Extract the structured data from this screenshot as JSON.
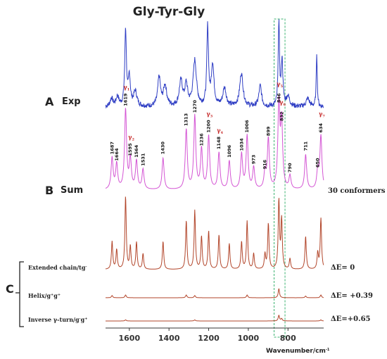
{
  "chart_data": {
    "type": "line",
    "title": "Gly-Tyr-Gly",
    "xlabel": "Wavenumber/cm",
    "xlabel_sup": "-1",
    "xlim": [
      1720,
      620
    ],
    "xticks": [
      1600,
      1400,
      1200,
      1000,
      800
    ],
    "highlight_range": [
      870,
      815
    ],
    "panels": [
      {
        "letter": "A",
        "name": "Exp"
      },
      {
        "letter": "B",
        "name": "Sum",
        "note": "30 conformers"
      },
      {
        "letter": "C"
      }
    ],
    "series": [
      {
        "name": "Exp",
        "color": "#2f3ec4"
      },
      {
        "name": "Sum",
        "color": "#d455d4"
      },
      {
        "name": "Extended chain/tg",
        "color": "#b2452a",
        "delta_E": "ΔE= 0"
      },
      {
        "name": "Helix/g+g+",
        "color": "#b2452a",
        "delta_E": "ΔE= +0.39"
      },
      {
        "name": "Inverse γ-turn/g-g+",
        "color": "#b2452a",
        "delta_E": "ΔE=+0.65"
      }
    ],
    "peak_labels": [
      {
        "x": 1687,
        "label": "1687",
        "level": 0.38
      },
      {
        "x": 1664,
        "label": "1664",
        "level": 0.3
      },
      {
        "x": 1619,
        "label": "1619",
        "level": 0.96
      },
      {
        "x": 1595,
        "label": "1595",
        "level": 0.36
      },
      {
        "x": 1564,
        "label": "1564",
        "level": 0.34
      },
      {
        "x": 1531,
        "label": "1531",
        "level": 0.24
      },
      {
        "x": 1430,
        "label": "1430",
        "level": 0.38
      },
      {
        "x": 1313,
        "label": "1313",
        "level": 0.72
      },
      {
        "x": 1270,
        "label": "1270",
        "level": 0.88
      },
      {
        "x": 1236,
        "label": "1236",
        "level": 0.48
      },
      {
        "x": 1200,
        "label": "1200",
        "level": 0.64
      },
      {
        "x": 1148,
        "label": "1148",
        "level": 0.44
      },
      {
        "x": 1096,
        "label": "1096",
        "level": 0.34
      },
      {
        "x": 1034,
        "label": "1034",
        "level": 0.42
      },
      {
        "x": 1006,
        "label": "1006",
        "level": 0.64
      },
      {
        "x": 973,
        "label": "973",
        "level": 0.26
      },
      {
        "x": 916,
        "label": "916",
        "level": 0.2
      },
      {
        "x": 899,
        "label": "899",
        "level": 0.6
      },
      {
        "x": 846,
        "label": "846",
        "level": 1.0
      },
      {
        "x": 832,
        "label": "832",
        "level": 0.78
      },
      {
        "x": 790,
        "label": "790",
        "level": 0.16
      },
      {
        "x": 711,
        "label": "711",
        "level": 0.42
      },
      {
        "x": 650,
        "label": "650",
        "level": 0.22
      },
      {
        "x": 634,
        "label": "634",
        "level": 0.64
      }
    ],
    "mode_labels": [
      {
        "x": 1619,
        "base": "γ",
        "sub": "1"
      },
      {
        "x": 1595,
        "base": "γ",
        "sub": "2"
      },
      {
        "x": 1200,
        "base": "γ",
        "sub": "3"
      },
      {
        "x": 1148,
        "base": "γ",
        "sub": "4"
      },
      {
        "x": 846,
        "base": "γ",
        "sub": "5"
      },
      {
        "x": 832,
        "base": "γ",
        "sub": "6"
      },
      {
        "x": 634,
        "base": "γ",
        "sub": "7"
      }
    ]
  },
  "labels": {
    "conformers": "30 conformers",
    "extended": "Extended chain/tg",
    "extended_sup": "-",
    "helix": "Helix/g",
    "helix_sup1": "+",
    "helix_mid": "g",
    "helix_sup2": "+",
    "inverse": "Inverse γ-turn/g",
    "inverse_sup1": "-",
    "inverse_mid": "g",
    "inverse_sup2": "+"
  }
}
